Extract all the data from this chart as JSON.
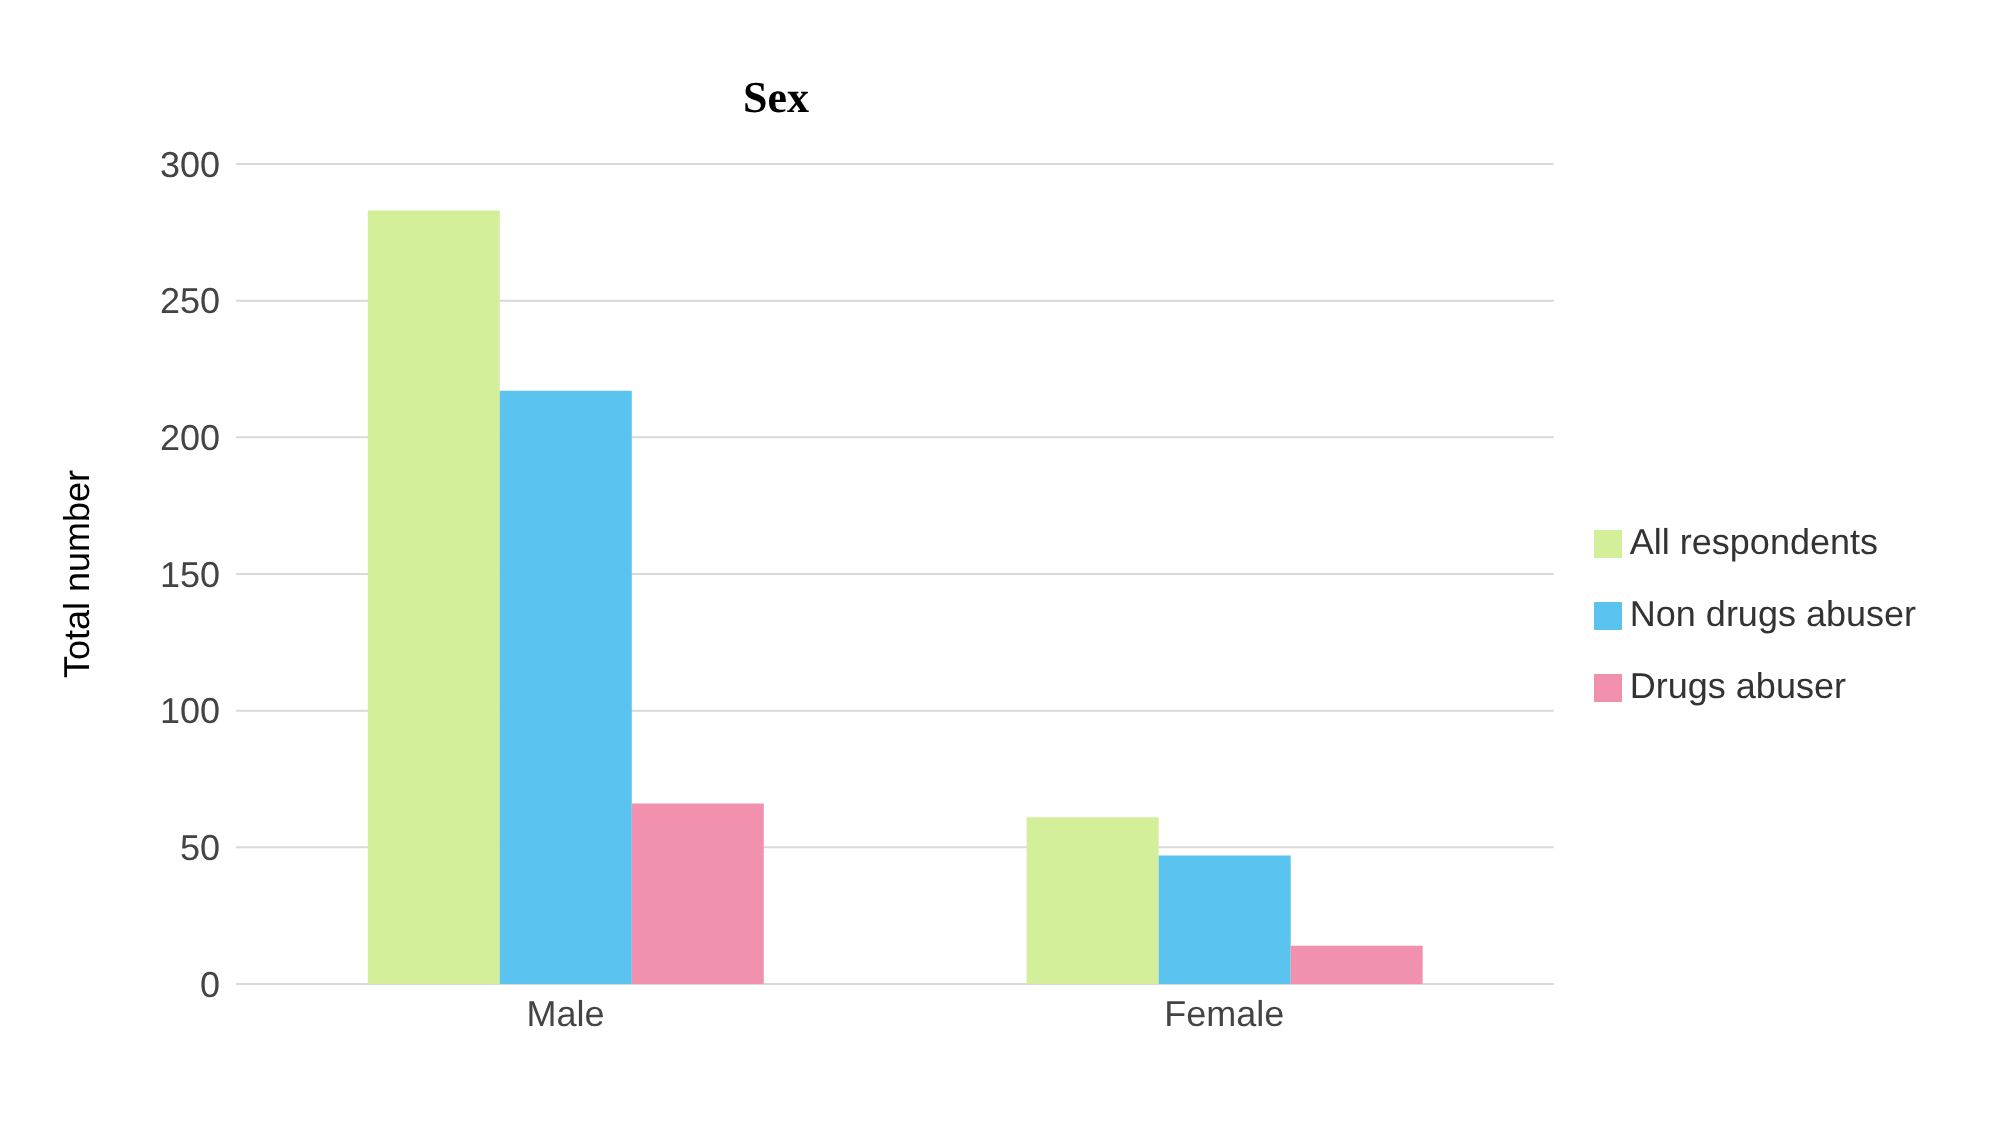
{
  "chart_data": {
    "type": "bar",
    "title": "Sex",
    "ylabel": "Total number",
    "categories": [
      "Male",
      "Female"
    ],
    "series": [
      {
        "name": "All respondents",
        "color": "#d4ef9a",
        "values": [
          283,
          61
        ]
      },
      {
        "name": "Non drugs abuser",
        "color": "#5bc3ef",
        "values": [
          217,
          47
        ]
      },
      {
        "name": "Drugs abuser",
        "color": "#f191ae",
        "values": [
          66,
          14
        ]
      }
    ],
    "ylim": [
      0,
      300
    ],
    "yticks": [
      0,
      50,
      100,
      150,
      200,
      250,
      300
    ],
    "grid": "y",
    "legend": "right"
  }
}
